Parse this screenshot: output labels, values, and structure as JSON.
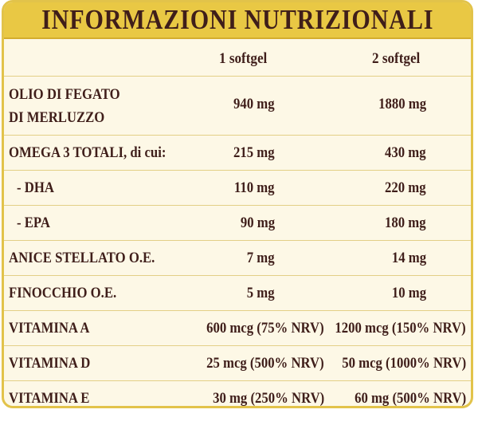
{
  "title": "INFORMAZIONI NUTRIZIONALI",
  "columns": [
    "1 softgel",
    "2 softgel"
  ],
  "rows": [
    {
      "label": "OLIO DI FEGATO DI MERLUZZO",
      "label_line1": "OLIO DI FEGATO",
      "label_line2": "DI MERLUZZO",
      "v1": "940 mg",
      "v2": "1880 mg"
    },
    {
      "label": "OMEGA 3 TOTALI, di cui:",
      "v1": "215 mg",
      "v2": "430 mg"
    },
    {
      "label": "- DHA",
      "v1": "110 mg",
      "v2": "220 mg"
    },
    {
      "label": "- EPA",
      "v1": "90 mg",
      "v2": "180 mg"
    },
    {
      "label": "ANICE STELLATO O.E.",
      "v1": "7 mg",
      "v2": "14 mg"
    },
    {
      "label": "FINOCCHIO O.E.",
      "v1": "5 mg",
      "v2": "10 mg"
    },
    {
      "label": "VITAMINA A",
      "v1": "600 mcg (75% NRV)",
      "v2": "1200 mcg (150% NRV)"
    },
    {
      "label": "VITAMINA D",
      "v1": "25 mcg (500% NRV)",
      "v2": "50 mcg (1000% NRV)"
    },
    {
      "label": "VITAMINA E",
      "v1": "30 mg (250% NRV)",
      "v2": "60 mg (500% NRV)"
    }
  ],
  "colors": {
    "header_bg": "#e9c844",
    "panel_bg": "#fdf8e6",
    "text": "#3f1e1a",
    "border": "#e2c34a"
  }
}
